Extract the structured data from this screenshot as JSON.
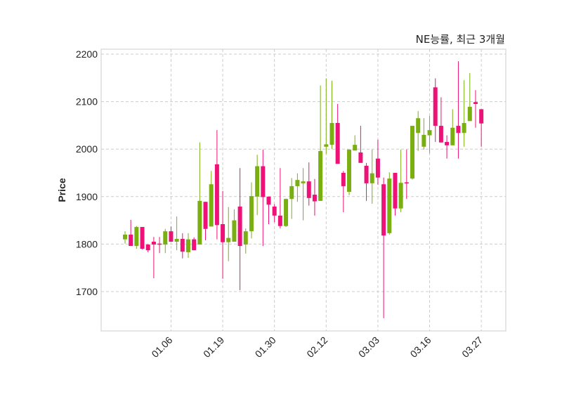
{
  "chart_data": {
    "type": "candlestick",
    "title": "NE능률, 최근 3개월",
    "xlabel": "",
    "ylabel": "Price",
    "ylim": [
      1615,
      2215
    ],
    "yticks": [
      1700,
      1800,
      1900,
      2000,
      2100,
      2200
    ],
    "grid": true,
    "xticks": [
      {
        "index": 8,
        "label": "01.06"
      },
      {
        "index": 17,
        "label": "01.19"
      },
      {
        "index": 26,
        "label": "01.30"
      },
      {
        "index": 35,
        "label": "02.12"
      },
      {
        "index": 44,
        "label": "03.03"
      },
      {
        "index": 53,
        "label": "03.16"
      },
      {
        "index": 62,
        "label": "03.27"
      }
    ],
    "colors": {
      "up": "#7aaf12",
      "down": "#ec1277"
    },
    "ohlc": [
      [
        1810,
        1827,
        1801,
        1820
      ],
      [
        1820,
        1851,
        1796,
        1796
      ],
      [
        1796,
        1838,
        1790,
        1836
      ],
      [
        1836,
        1836,
        1789,
        1790
      ],
      [
        1799,
        1800,
        1783,
        1787
      ],
      [
        1805,
        1815,
        1728,
        1799
      ],
      [
        1801,
        1815,
        1781,
        1800
      ],
      [
        1799,
        1832,
        1781,
        1827
      ],
      [
        1827,
        1837,
        1805,
        1805
      ],
      [
        1805,
        1858,
        1787,
        1811
      ],
      [
        1811,
        1823,
        1770,
        1784
      ],
      [
        1783,
        1823,
        1771,
        1810
      ],
      [
        1810,
        1814,
        1787,
        1787
      ],
      [
        1799,
        2014,
        1799,
        1891
      ],
      [
        1889,
        1889,
        1808,
        1832
      ],
      [
        1837,
        1954,
        1837,
        1926
      ],
      [
        1968,
        2040,
        1810,
        1840
      ],
      [
        1842,
        1912,
        1727,
        1804
      ],
      [
        1804,
        1878,
        1764,
        1813
      ],
      [
        1805,
        1873,
        1805,
        1850
      ],
      [
        1879,
        1960,
        1703,
        1796
      ],
      [
        1799,
        1833,
        1780,
        1827
      ],
      [
        1827,
        1930,
        1812,
        1901
      ],
      [
        1900,
        1988,
        1861,
        1964
      ],
      [
        1964,
        1999,
        1796,
        1899
      ],
      [
        1900,
        1900,
        1842,
        1883
      ],
      [
        1879,
        1884,
        1846,
        1860
      ],
      [
        1860,
        1960,
        1833,
        1838
      ],
      [
        1838,
        1896,
        1836,
        1895
      ],
      [
        1895,
        1939,
        1853,
        1922
      ],
      [
        1922,
        1949,
        1889,
        1935
      ],
      [
        1928,
        1960,
        1850,
        1932
      ],
      [
        1932,
        1972,
        1881,
        1897
      ],
      [
        1904,
        1937,
        1860,
        1890
      ],
      [
        1891,
        2134,
        1891,
        1996
      ],
      [
        2005,
        2149,
        1990,
        2010
      ],
      [
        2009,
        2144,
        2000,
        2055
      ],
      [
        2055,
        2095,
        1969,
        1969
      ],
      [
        1950,
        1954,
        1867,
        1922
      ],
      [
        1910,
        1999,
        1903,
        1999
      ],
      [
        1997,
        2029,
        1997,
        2009
      ],
      [
        1993,
        2049,
        1971,
        1971
      ],
      [
        1965,
        1971,
        1891,
        1928
      ],
      [
        1928,
        1999,
        1885,
        1949
      ],
      [
        1980,
        2020,
        1925,
        1940
      ],
      [
        1926,
        1940,
        1644,
        1818
      ],
      [
        1823,
        1951,
        1820,
        1938
      ],
      [
        1950,
        1950,
        1860,
        1875
      ],
      [
        1875,
        1999,
        1867,
        1929
      ],
      [
        1930,
        1999,
        1895,
        1929
      ],
      [
        1938,
        2049,
        1936,
        2049
      ],
      [
        2034,
        2080,
        1996,
        2065
      ],
      [
        2005,
        2065,
        1999,
        2030
      ],
      [
        2029,
        2070,
        1991,
        2040
      ],
      [
        2130,
        2149,
        2015,
        2049
      ],
      [
        2049,
        2109,
        2014,
        2014
      ],
      [
        2015,
        2029,
        1980,
        2008
      ],
      [
        2008,
        2084,
        2008,
        2045
      ],
      [
        2049,
        2185,
        1980,
        2034
      ],
      [
        2034,
        2145,
        2005,
        2055
      ],
      [
        2059,
        2160,
        2059,
        2089
      ],
      [
        2099,
        2124,
        2045,
        2095
      ],
      [
        2084,
        2084,
        2005,
        2054
      ]
    ]
  }
}
